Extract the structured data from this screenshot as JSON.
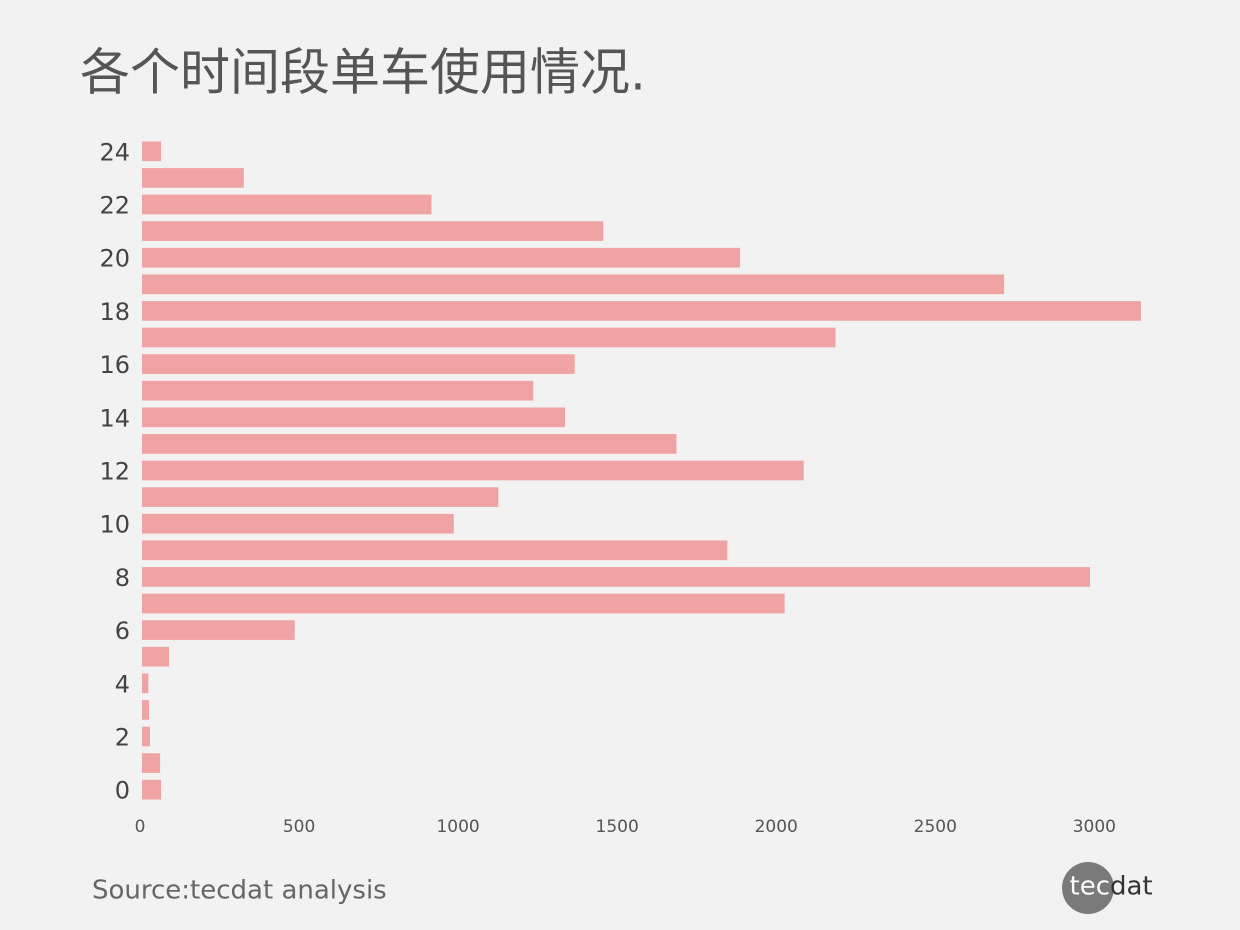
{
  "chart_data": {
    "type": "hbar",
    "title": "各个时间段单车使用情况.",
    "y": [
      0,
      1,
      2,
      3,
      4,
      5,
      6,
      7,
      8,
      9,
      10,
      11,
      12,
      13,
      14,
      15,
      16,
      17,
      18,
      19,
      20,
      21,
      22,
      23,
      24
    ],
    "values": [
      60,
      57,
      25,
      22,
      20,
      85,
      480,
      2020,
      2980,
      1840,
      980,
      1120,
      2080,
      1680,
      1330,
      1230,
      1360,
      2180,
      3140,
      2710,
      1880,
      1450,
      910,
      320,
      60
    ],
    "color": "#f0a3a3",
    "xlim": [
      0,
      3200
    ],
    "xticks": [
      0,
      500,
      1000,
      1500,
      2000,
      2500,
      3000
    ],
    "ylim": [
      -0.5,
      24.5
    ],
    "yticks": [
      0,
      2,
      4,
      6,
      8,
      10,
      12,
      14,
      16,
      18,
      20,
      22,
      24
    ],
    "source": "Source:tecdat analysis",
    "logo": [
      "tec",
      "dat"
    ]
  }
}
